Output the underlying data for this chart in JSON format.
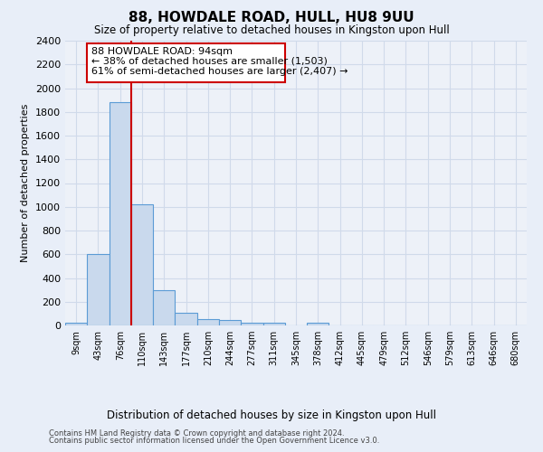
{
  "title": "88, HOWDALE ROAD, HULL, HU8 9UU",
  "subtitle": "Size of property relative to detached houses in Kingston upon Hull",
  "xlabel": "Distribution of detached houses by size in Kingston upon Hull",
  "ylabel": "Number of detached properties",
  "footer_line1": "Contains HM Land Registry data © Crown copyright and database right 2024.",
  "footer_line2": "Contains public sector information licensed under the Open Government Licence v3.0.",
  "bin_labels": [
    "9sqm",
    "43sqm",
    "76sqm",
    "110sqm",
    "143sqm",
    "177sqm",
    "210sqm",
    "244sqm",
    "277sqm",
    "311sqm",
    "345sqm",
    "378sqm",
    "412sqm",
    "445sqm",
    "479sqm",
    "512sqm",
    "546sqm",
    "579sqm",
    "613sqm",
    "646sqm",
    "680sqm"
  ],
  "bar_values": [
    20,
    600,
    1880,
    1020,
    295,
    108,
    50,
    42,
    22,
    20,
    0,
    22,
    0,
    0,
    0,
    0,
    0,
    0,
    0,
    0,
    0
  ],
  "bar_color": "#c9d9ed",
  "bar_edgecolor": "#5b9bd5",
  "grid_color": "#d0daea",
  "background_color": "#e8eef8",
  "plot_bg_color": "#edf1f8",
  "annotation_line1": "88 HOWDALE ROAD: 94sqm",
  "annotation_line2": "← 38% of detached houses are smaller (1,503)",
  "annotation_line3": "61% of semi-detached houses are larger (2,407) →",
  "vline_x_index": 2,
  "vline_color": "#cc0000",
  "annotation_box_edgecolor": "#cc0000",
  "ylim": [
    0,
    2400
  ],
  "yticks": [
    0,
    200,
    400,
    600,
    800,
    1000,
    1200,
    1400,
    1600,
    1800,
    2000,
    2200,
    2400
  ]
}
